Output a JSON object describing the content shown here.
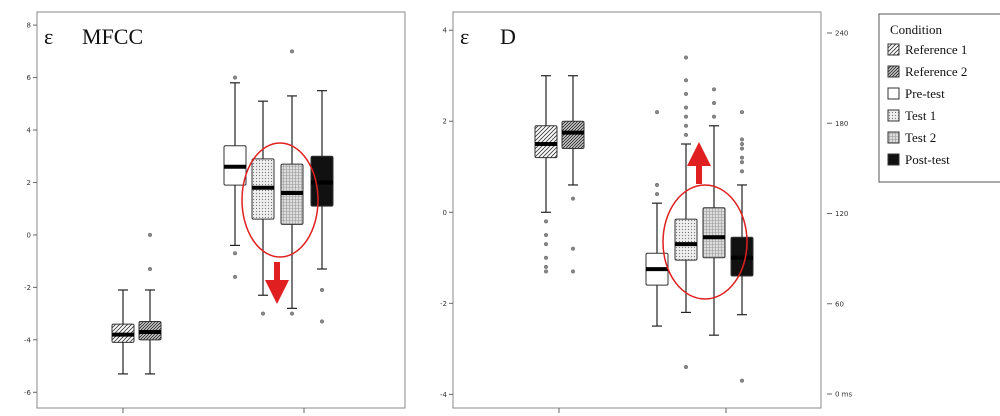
{
  "legend": {
    "title": "Condition",
    "items": [
      {
        "label": "Reference 1",
        "pattern": "hatch-light"
      },
      {
        "label": "Reference 2",
        "pattern": "hatch-dense"
      },
      {
        "label": "Pre-test",
        "pattern": "white"
      },
      {
        "label": "Test 1",
        "pattern": "dots"
      },
      {
        "label": "Test 2",
        "pattern": "grid"
      },
      {
        "label": "Post-test",
        "pattern": "black"
      }
    ]
  },
  "colors": {
    "highlight": "#e02020",
    "box_stroke": "#333333"
  },
  "chart_data": [
    {
      "type": "box",
      "title_symbol": "ε",
      "title": "MFCC",
      "ylim": [
        -6.6,
        8.5
      ],
      "yticks": [
        "8",
        "6",
        "4",
        "2",
        "0",
        "-2",
        "-4",
        "-6"
      ],
      "ytick_values": [
        8,
        6,
        4,
        2,
        0,
        -2,
        -4,
        -6
      ],
      "grid": false,
      "annotation": {
        "shape": "ellipse",
        "arrow": "down",
        "covers": [
          "Test 1",
          "Test 2"
        ]
      },
      "boxes": [
        {
          "condition": "Reference 1",
          "pattern": "hatch-light",
          "min": -5.3,
          "q1": -4.1,
          "median": -3.8,
          "q3": -3.4,
          "max": -2.1,
          "outliers": []
        },
        {
          "condition": "Reference 2",
          "pattern": "hatch-dense",
          "min": -5.3,
          "q1": -4.0,
          "median": -3.7,
          "q3": -3.3,
          "max": -2.1,
          "outliers": [
            -1.3,
            0.0
          ]
        },
        {
          "condition": "Pre-test",
          "pattern": "white",
          "min": -0.4,
          "q1": 1.9,
          "median": 2.6,
          "q3": 3.4,
          "max": 5.8,
          "outliers": [
            -1.6,
            -0.7,
            6.0
          ]
        },
        {
          "condition": "Test 1",
          "pattern": "dots",
          "min": -2.3,
          "q1": 0.6,
          "median": 1.8,
          "q3": 2.9,
          "max": 5.1,
          "outliers": [
            -3.0
          ]
        },
        {
          "condition": "Test 2",
          "pattern": "grid",
          "min": -2.8,
          "q1": 0.4,
          "median": 1.6,
          "q3": 2.7,
          "max": 5.3,
          "outliers": [
            -3.0,
            7.0
          ]
        },
        {
          "condition": "Post-test",
          "pattern": "black",
          "min": -1.3,
          "q1": 1.1,
          "median": 2.0,
          "q3": 3.0,
          "max": 5.5,
          "outliers": [
            -2.1,
            -3.3
          ]
        }
      ]
    },
    {
      "type": "box",
      "title_symbol": "ε",
      "title": "D",
      "ylim": [
        -4.3,
        4.4
      ],
      "yticks": [
        "4",
        "2",
        "0",
        "-2",
        "-4"
      ],
      "ytick_values": [
        4,
        2,
        0,
        -2,
        -4
      ],
      "y2ticks": [
        "240",
        "180",
        "120",
        "60",
        "0 ms"
      ],
      "y2tick_values": [
        240,
        180,
        120,
        60,
        0
      ],
      "grid": false,
      "annotation": {
        "shape": "ellipse",
        "arrow": "up",
        "covers": [
          "Test 1",
          "Test 2"
        ]
      },
      "boxes": [
        {
          "condition": "Reference 1",
          "pattern": "hatch-light",
          "min": 0.0,
          "q1": 1.2,
          "median": 1.5,
          "q3": 1.9,
          "max": 3.0,
          "outliers": [
            -0.2,
            -0.5,
            -0.7,
            -1.0,
            -1.2,
            -1.3
          ]
        },
        {
          "condition": "Reference 2",
          "pattern": "hatch-dense",
          "min": 0.6,
          "q1": 1.4,
          "median": 1.75,
          "q3": 2.0,
          "max": 3.0,
          "outliers": [
            0.3,
            -0.8,
            -1.3
          ]
        },
        {
          "condition": "Pre-test",
          "pattern": "white",
          "min": -2.5,
          "q1": -1.6,
          "median": -1.25,
          "q3": -0.9,
          "max": 0.2,
          "outliers": [
            0.4,
            0.6,
            2.2
          ]
        },
        {
          "condition": "Test 1",
          "pattern": "dots",
          "min": -2.2,
          "q1": -1.05,
          "median": -0.7,
          "q3": -0.15,
          "max": 1.5,
          "outliers": [
            1.7,
            1.9,
            2.1,
            2.3,
            2.6,
            2.9,
            3.4,
            -3.4
          ]
        },
        {
          "condition": "Test 2",
          "pattern": "grid",
          "min": -2.7,
          "q1": -1.0,
          "median": -0.55,
          "q3": 0.1,
          "max": 1.9,
          "outliers": [
            2.1,
            2.4,
            2.7
          ]
        },
        {
          "condition": "Post-test",
          "pattern": "black",
          "min": -2.25,
          "q1": -1.4,
          "median": -1.0,
          "q3": -0.55,
          "max": 0.6,
          "outliers": [
            0.9,
            1.1,
            1.2,
            1.4,
            1.5,
            1.6,
            2.2,
            -3.7
          ]
        }
      ]
    }
  ]
}
